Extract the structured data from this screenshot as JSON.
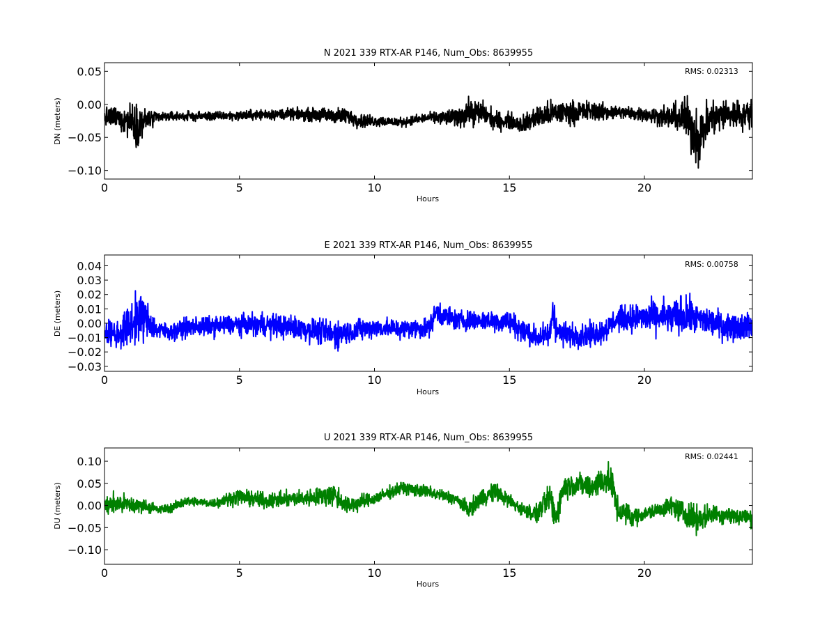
{
  "chart_data": [
    {
      "type": "line",
      "title": "N 2021 339 RTX-AR  P146, Num_Obs: 8639955",
      "xlabel": "Hours",
      "ylabel": "DN (meters)",
      "xlim": [
        0,
        24
      ],
      "ylim": [
        -0.113,
        0.063
      ],
      "xticks": [
        0,
        5,
        10,
        15,
        20
      ],
      "yticks": [
        0.05,
        0.0,
        -0.05,
        -0.1
      ],
      "ytick_labels": [
        "0.05",
        "0.00",
        "−0.05",
        "−0.10"
      ],
      "rms_label": "RMS:  0.02313",
      "rms_color": "#0000ff",
      "color": "#000000",
      "grid": false,
      "series": [
        {
          "x": [
            0,
            0.5,
            1.0,
            1.2,
            1.5,
            2.0,
            2.5,
            3,
            4,
            5,
            6,
            7,
            8,
            9,
            9.5,
            10,
            11,
            12,
            13,
            13.5,
            14,
            14.5,
            15,
            15.5,
            16,
            16.5,
            17,
            17.5,
            18,
            19,
            20,
            21,
            21.5,
            22,
            22.5,
            23,
            24
          ],
          "mean": [
            -0.02,
            -0.02,
            -0.025,
            -0.03,
            -0.025,
            -0.02,
            -0.018,
            -0.018,
            -0.018,
            -0.017,
            -0.015,
            -0.015,
            -0.016,
            -0.018,
            -0.025,
            -0.025,
            -0.027,
            -0.02,
            -0.02,
            -0.012,
            -0.012,
            -0.025,
            -0.025,
            -0.03,
            -0.02,
            -0.015,
            -0.012,
            -0.012,
            -0.01,
            -0.012,
            -0.015,
            -0.02,
            -0.02,
            -0.05,
            -0.02,
            -0.015,
            -0.015
          ],
          "amp": [
            0.02,
            0.025,
            0.04,
            0.045,
            0.03,
            0.012,
            0.01,
            0.01,
            0.01,
            0.01,
            0.012,
            0.012,
            0.015,
            0.018,
            0.015,
            0.012,
            0.01,
            0.01,
            0.02,
            0.03,
            0.025,
            0.02,
            0.018,
            0.02,
            0.025,
            0.028,
            0.025,
            0.025,
            0.022,
            0.015,
            0.015,
            0.025,
            0.045,
            0.065,
            0.04,
            0.035,
            0.03
          ]
        }
      ]
    },
    {
      "type": "line",
      "title": "E 2021 339 RTX-AR  P146, Num_Obs: 8639955",
      "xlabel": "Hours",
      "ylabel": "DE (meters)",
      "xlim": [
        0,
        24
      ],
      "ylim": [
        -0.0335,
        0.0475
      ],
      "xticks": [
        0,
        5,
        10,
        15,
        20
      ],
      "yticks": [
        0.04,
        0.03,
        0.02,
        0.01,
        0.0,
        -0.01,
        -0.02,
        -0.03
      ],
      "ytick_labels": [
        "0.04",
        "0.03",
        "0.02",
        "0.01",
        "0.00",
        "−0.01",
        "−0.02",
        "−0.03"
      ],
      "rms_label": "RMS:  0.00758",
      "rms_color": "#0000ff",
      "color": "#0000ff",
      "grid": false,
      "series": [
        {
          "x": [
            0,
            0.5,
            1.0,
            1.3,
            1.6,
            2.0,
            2.5,
            3,
            4,
            5,
            6,
            7,
            8,
            8.5,
            9,
            10,
            11,
            12,
            12.3,
            12.6,
            13,
            14,
            15,
            15.5,
            16,
            16.5,
            16.6,
            16.8,
            17,
            18,
            18.5,
            19,
            20,
            21,
            21.5,
            22,
            23,
            24
          ],
          "mean": [
            -0.006,
            -0.008,
            0.0,
            0.005,
            0.002,
            -0.005,
            -0.006,
            -0.003,
            -0.002,
            -0.001,
            -0.001,
            -0.003,
            -0.006,
            -0.008,
            -0.006,
            -0.003,
            -0.004,
            -0.003,
            0.008,
            0.005,
            0.002,
            0.002,
            0.001,
            -0.005,
            -0.01,
            -0.008,
            0.01,
            -0.006,
            -0.008,
            -0.008,
            -0.005,
            0.003,
            0.004,
            0.004,
            0.005,
            0.003,
            -0.002,
            -0.002
          ],
          "amp": [
            0.012,
            0.015,
            0.022,
            0.025,
            0.018,
            0.01,
            0.008,
            0.01,
            0.01,
            0.01,
            0.012,
            0.012,
            0.012,
            0.015,
            0.012,
            0.01,
            0.01,
            0.01,
            0.012,
            0.012,
            0.01,
            0.01,
            0.012,
            0.012,
            0.012,
            0.012,
            0.03,
            0.012,
            0.012,
            0.012,
            0.012,
            0.012,
            0.015,
            0.018,
            0.02,
            0.015,
            0.014,
            0.013
          ]
        }
      ]
    },
    {
      "type": "line",
      "title": "U 2021 339 RTX-AR  P146, Num_Obs: 8639955",
      "xlabel": "Hours",
      "ylabel": "DU (meters)",
      "xlim": [
        0,
        24
      ],
      "ylim": [
        -0.133,
        0.13
      ],
      "xticks": [
        0,
        5,
        10,
        15,
        20
      ],
      "yticks": [
        0.1,
        0.05,
        0.0,
        -0.05,
        -0.1
      ],
      "ytick_labels": [
        "0.10",
        "0.05",
        "0.00",
        "−0.05",
        "−0.10"
      ],
      "rms_label": "RMS:  0.02441",
      "rms_color": "#0000ff",
      "color": "#008000",
      "grid": false,
      "series": [
        {
          "x": [
            0,
            0.5,
            1.0,
            1.5,
            2.0,
            2.5,
            3,
            4,
            5,
            6,
            7,
            8,
            8.5,
            9,
            10,
            11,
            12,
            13,
            13.5,
            14,
            14.5,
            15,
            15.5,
            16,
            16.5,
            16.7,
            17,
            17.5,
            18,
            18.5,
            18.8,
            19,
            19.5,
            20,
            21,
            21.5,
            22,
            22.5,
            23,
            24
          ],
          "mean": [
            0.0,
            0.005,
            0.0,
            0.0,
            -0.01,
            -0.005,
            0.01,
            0.005,
            0.02,
            0.01,
            0.015,
            0.02,
            0.025,
            0.0,
            0.015,
            0.04,
            0.03,
            0.015,
            -0.01,
            0.02,
            0.03,
            0.01,
            -0.01,
            -0.02,
            0.02,
            -0.03,
            0.04,
            0.05,
            0.04,
            0.06,
            0.05,
            -0.01,
            -0.025,
            -0.02,
            0.0,
            -0.02,
            -0.03,
            -0.02,
            -0.02,
            -0.03
          ],
          "amp": [
            0.03,
            0.035,
            0.03,
            0.02,
            0.015,
            0.015,
            0.015,
            0.015,
            0.025,
            0.025,
            0.025,
            0.03,
            0.04,
            0.03,
            0.02,
            0.02,
            0.02,
            0.02,
            0.025,
            0.03,
            0.03,
            0.025,
            0.02,
            0.03,
            0.04,
            0.06,
            0.04,
            0.035,
            0.04,
            0.05,
            0.05,
            0.04,
            0.035,
            0.02,
            0.03,
            0.04,
            0.045,
            0.03,
            0.03,
            0.03
          ]
        }
      ]
    }
  ]
}
